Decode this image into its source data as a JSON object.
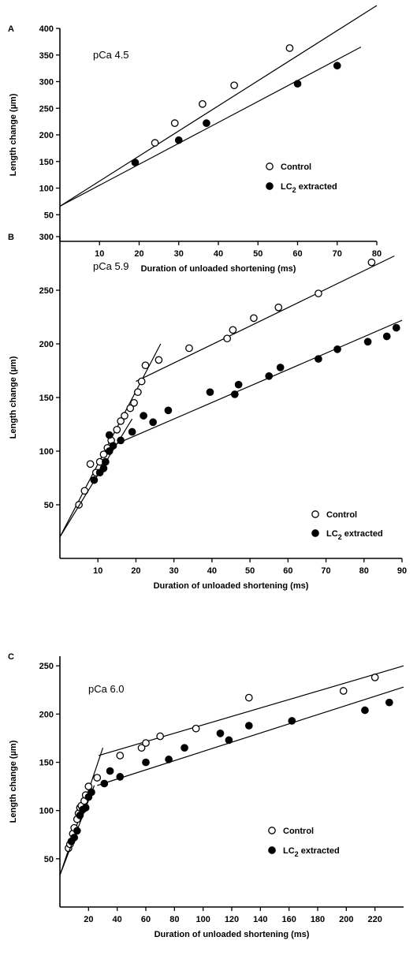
{
  "chart_data": [
    {
      "panel_label": "A",
      "condition": "pCa 4.5",
      "type": "scatter",
      "xlabel": "Duration of unloaded shortening (ms)",
      "ylabel": "Length change (µm)",
      "xlim": [
        0,
        80
      ],
      "ylim": [
        0,
        400
      ],
      "xticks": [
        10,
        20,
        30,
        40,
        50,
        60,
        70,
        80
      ],
      "yticks": [
        50,
        100,
        150,
        200,
        250,
        300,
        350,
        400
      ],
      "legend_position": "center-right",
      "series": [
        {
          "name": "Control",
          "marker": "open",
          "points": [
            [
              24,
              185
            ],
            [
              29,
              222
            ],
            [
              36,
              258
            ],
            [
              44,
              293
            ],
            [
              58,
              363
            ]
          ],
          "fit": [
            [
              0,
              66
            ],
            [
              80,
              443
            ]
          ]
        },
        {
          "name": "LC2 extracted",
          "legend_main": "LC",
          "legend_sub": "2",
          "legend_rest": " extracted",
          "marker": "filled",
          "points": [
            [
              19,
              148
            ],
            [
              30,
              190
            ],
            [
              37,
              222
            ],
            [
              60,
              296
            ],
            [
              70,
              330
            ]
          ],
          "fit": [
            [
              0,
              66
            ],
            [
              76,
              365
            ]
          ]
        }
      ]
    },
    {
      "panel_label": "B",
      "condition": "pCa 5.9",
      "type": "scatter",
      "xlabel": "Duration of unloaded shortening (ms)",
      "ylabel": "Length change (µm)",
      "xlim": [
        0,
        90
      ],
      "ylim": [
        0,
        300
      ],
      "xticks": [
        10,
        20,
        30,
        40,
        50,
        60,
        70,
        80,
        90
      ],
      "yticks": [
        50,
        100,
        150,
        200,
        250,
        300
      ],
      "legend_position": "bottom-right",
      "series": [
        {
          "name": "Control",
          "marker": "open",
          "points": [
            [
              5,
              50
            ],
            [
              6.5,
              63
            ],
            [
              8,
              88
            ],
            [
              9.5,
              80
            ],
            [
              10.5,
              90
            ],
            [
              11.5,
              97
            ],
            [
              12.5,
              103
            ],
            [
              13.5,
              110
            ],
            [
              15,
              120
            ],
            [
              16,
              128
            ],
            [
              17,
              133
            ],
            [
              18.5,
              140
            ],
            [
              19.5,
              145
            ],
            [
              20.5,
              155
            ],
            [
              21.5,
              165
            ],
            [
              22.5,
              180
            ],
            [
              26,
              185
            ],
            [
              34,
              196
            ],
            [
              44,
              205
            ],
            [
              45.5,
              213
            ],
            [
              51,
              224
            ],
            [
              57.5,
              234
            ],
            [
              68,
              247
            ],
            [
              82,
              276
            ]
          ],
          "fit": [
            [
              0,
              20
            ],
            [
              26.5,
              200
            ],
            [
              20,
              165
            ],
            [
              88,
              282
            ]
          ]
        },
        {
          "name": "LC2 extracted",
          "legend_main": "LC",
          "legend_sub": "2",
          "legend_rest": " extracted",
          "marker": "filled",
          "points": [
            [
              9,
              73
            ],
            [
              10.5,
              80
            ],
            [
              11.5,
              84
            ],
            [
              12,
              90
            ],
            [
              13,
              100
            ],
            [
              13,
              115
            ],
            [
              14,
              105
            ],
            [
              16,
              110
            ],
            [
              19,
              118
            ],
            [
              22,
              133
            ],
            [
              24.5,
              127
            ],
            [
              28.5,
              138
            ],
            [
              39.5,
              155
            ],
            [
              46,
              153
            ],
            [
              47,
              162
            ],
            [
              55,
              170
            ],
            [
              58,
              178
            ],
            [
              68,
              186
            ],
            [
              73,
              195
            ],
            [
              81,
              202
            ],
            [
              86,
              207
            ],
            [
              88.5,
              215
            ]
          ],
          "fit": [
            [
              0,
              20
            ],
            [
              19,
              130
            ],
            [
              15,
              107
            ],
            [
              90,
              222
            ]
          ]
        }
      ]
    },
    {
      "panel_label": "C",
      "condition": "pCa 6.0",
      "type": "scatter",
      "xlabel": "Duration of unloaded shortening (ms)",
      "ylabel": "Length change (µm)",
      "xlim": [
        0,
        240
      ],
      "ylim": [
        0,
        260
      ],
      "xticks": [
        20,
        40,
        60,
        80,
        100,
        120,
        140,
        160,
        180,
        200,
        220
      ],
      "yticks": [
        50,
        100,
        150,
        200,
        250
      ],
      "legend_position": "bottom-right",
      "series": [
        {
          "name": "Control",
          "marker": "open",
          "points": [
            [
              6,
              61
            ],
            [
              7,
              65
            ],
            [
              9,
              76
            ],
            [
              10,
              82
            ],
            [
              12,
              91
            ],
            [
              13,
              97
            ],
            [
              14,
              103
            ],
            [
              15,
              105
            ],
            [
              17,
              110
            ],
            [
              18,
              116
            ],
            [
              20,
              125
            ],
            [
              26,
              134
            ],
            [
              42,
              157
            ],
            [
              57,
              165
            ],
            [
              60,
              170
            ],
            [
              70,
              177
            ],
            [
              95,
              185
            ],
            [
              132,
              217
            ],
            [
              198,
              224
            ],
            [
              220,
              238
            ]
          ],
          "fit": [
            [
              0,
              33
            ],
            [
              30,
              165
            ],
            [
              27,
              157
            ],
            [
              240,
              250
            ]
          ]
        },
        {
          "name": "LC2 extracted",
          "legend_main": "LC",
          "legend_sub": "2",
          "legend_rest": " extracted",
          "marker": "filled",
          "points": [
            [
              8,
              68
            ],
            [
              10,
              72
            ],
            [
              12,
              79
            ],
            [
              14,
              95
            ],
            [
              16,
              101
            ],
            [
              18,
              103
            ],
            [
              20,
              114
            ],
            [
              22,
              119
            ],
            [
              31,
              128
            ],
            [
              35,
              141
            ],
            [
              42,
              135
            ],
            [
              60,
              150
            ],
            [
              76,
              153
            ],
            [
              87,
              165
            ],
            [
              112,
              180
            ],
            [
              118,
              173
            ],
            [
              132,
              188
            ],
            [
              162,
              193
            ],
            [
              213,
              204
            ],
            [
              230,
              212
            ]
          ],
          "fit": [
            [
              0,
              33
            ],
            [
              24,
              126
            ],
            [
              26,
              126
            ],
            [
              240,
              228
            ]
          ]
        }
      ]
    }
  ]
}
